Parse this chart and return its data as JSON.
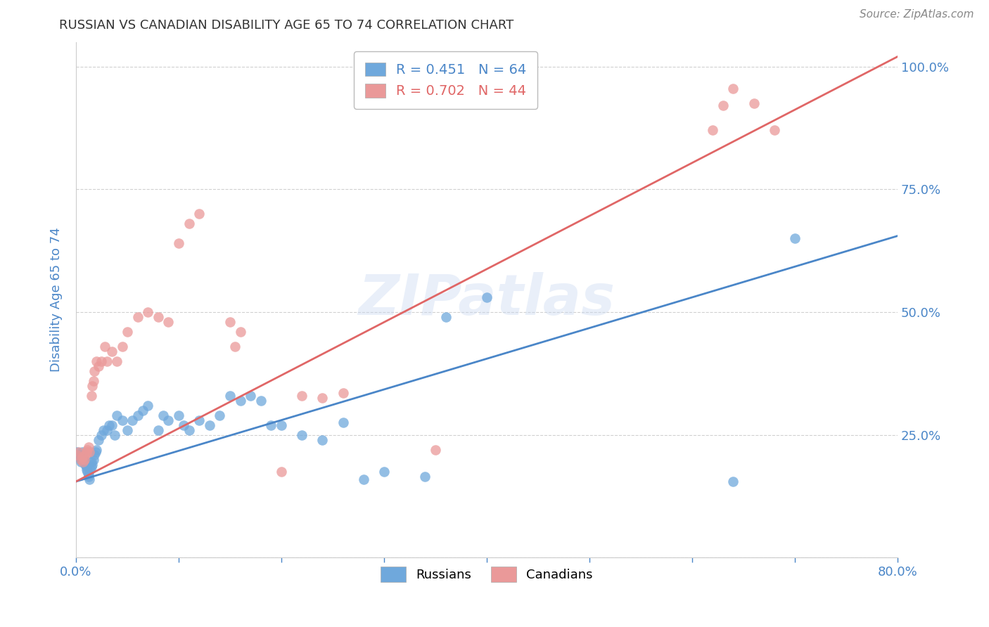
{
  "title": "RUSSIAN VS CANADIAN DISABILITY AGE 65 TO 74 CORRELATION CHART",
  "source": "Source: ZipAtlas.com",
  "ylabel": "Disability Age 65 to 74",
  "xlim": [
    0.0,
    0.8
  ],
  "ylim": [
    0.0,
    1.05
  ],
  "yticks": [
    0.0,
    0.25,
    0.5,
    0.75,
    1.0
  ],
  "ytick_labels_right": [
    "",
    "25.0%",
    "50.0%",
    "75.0%",
    "100.0%"
  ],
  "xticks": [
    0.0,
    0.1,
    0.2,
    0.3,
    0.4,
    0.5,
    0.6,
    0.7,
    0.8
  ],
  "xtick_labels": [
    "0.0%",
    "",
    "",
    "",
    "",
    "",
    "",
    "",
    "80.0%"
  ],
  "russian_color": "#6fa8dc",
  "canadian_color": "#ea9999",
  "trendline_russian_color": "#4a86c8",
  "trendline_canadian_color": "#e06666",
  "watermark": "ZIPatlas",
  "legend_r_russian": "R = 0.451",
  "legend_n_russian": "N = 64",
  "legend_r_canadian": "R = 0.702",
  "legend_n_canadian": "N = 44",
  "trendline_russian": [
    0.155,
    0.655
  ],
  "trendline_canadian": [
    0.155,
    1.02
  ],
  "russians_x": [
    0.001,
    0.002,
    0.003,
    0.004,
    0.005,
    0.005,
    0.006,
    0.007,
    0.008,
    0.008,
    0.009,
    0.01,
    0.01,
    0.011,
    0.012,
    0.012,
    0.013,
    0.014,
    0.015,
    0.015,
    0.016,
    0.017,
    0.018,
    0.019,
    0.02,
    0.022,
    0.025,
    0.027,
    0.03,
    0.032,
    0.035,
    0.038,
    0.04,
    0.045,
    0.05,
    0.055,
    0.06,
    0.065,
    0.07,
    0.08,
    0.085,
    0.09,
    0.1,
    0.105,
    0.11,
    0.12,
    0.13,
    0.14,
    0.15,
    0.16,
    0.17,
    0.18,
    0.19,
    0.2,
    0.22,
    0.24,
    0.26,
    0.28,
    0.3,
    0.34,
    0.36,
    0.4,
    0.64,
    0.7
  ],
  "russians_y": [
    0.215,
    0.21,
    0.205,
    0.21,
    0.2,
    0.195,
    0.215,
    0.205,
    0.2,
    0.195,
    0.19,
    0.185,
    0.18,
    0.175,
    0.17,
    0.165,
    0.16,
    0.18,
    0.185,
    0.195,
    0.19,
    0.2,
    0.21,
    0.215,
    0.22,
    0.24,
    0.25,
    0.26,
    0.26,
    0.27,
    0.27,
    0.25,
    0.29,
    0.28,
    0.26,
    0.28,
    0.29,
    0.3,
    0.31,
    0.26,
    0.29,
    0.28,
    0.29,
    0.27,
    0.26,
    0.28,
    0.27,
    0.29,
    0.33,
    0.32,
    0.33,
    0.32,
    0.27,
    0.27,
    0.25,
    0.24,
    0.275,
    0.16,
    0.175,
    0.165,
    0.49,
    0.53,
    0.155,
    0.65
  ],
  "canadians_x": [
    0.001,
    0.003,
    0.005,
    0.006,
    0.007,
    0.008,
    0.009,
    0.01,
    0.011,
    0.012,
    0.013,
    0.015,
    0.016,
    0.017,
    0.018,
    0.02,
    0.022,
    0.025,
    0.028,
    0.03,
    0.035,
    0.04,
    0.045,
    0.05,
    0.06,
    0.07,
    0.08,
    0.09,
    0.1,
    0.11,
    0.12,
    0.15,
    0.155,
    0.16,
    0.2,
    0.22,
    0.24,
    0.26,
    0.35,
    0.62,
    0.63,
    0.64,
    0.66,
    0.68
  ],
  "canadians_y": [
    0.21,
    0.215,
    0.2,
    0.205,
    0.195,
    0.2,
    0.21,
    0.215,
    0.22,
    0.225,
    0.215,
    0.33,
    0.35,
    0.36,
    0.38,
    0.4,
    0.39,
    0.4,
    0.43,
    0.4,
    0.42,
    0.4,
    0.43,
    0.46,
    0.49,
    0.5,
    0.49,
    0.48,
    0.64,
    0.68,
    0.7,
    0.48,
    0.43,
    0.46,
    0.175,
    0.33,
    0.325,
    0.335,
    0.22,
    0.87,
    0.92,
    0.955,
    0.925,
    0.87
  ],
  "background_color": "#ffffff",
  "grid_color": "#d0d0d0",
  "title_color": "#333333",
  "axis_color": "#4a86c8",
  "marker_size": 110
}
